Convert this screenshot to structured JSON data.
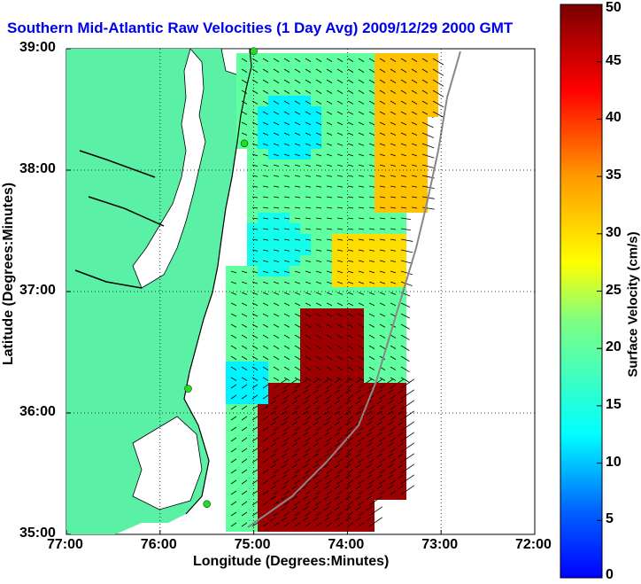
{
  "title": "Southern Mid-Atlantic Raw Velocities (1 Day Avg) 2009/12/29 2000 GMT",
  "colors": {
    "title": "#0000ee",
    "land": "#5af0a5",
    "water": "#ffffff",
    "coastline": "#000000",
    "shelf_line": "#888888",
    "station": "#22dd22",
    "grid": "#000000"
  },
  "map": {
    "xlabel": "Longitude (Degrees:Minutes)",
    "ylabel": "Latitude (Degrees:Minutes)",
    "x_ticks": [
      "77:00",
      "76:00",
      "75:00",
      "74:00",
      "73:00",
      "72:00"
    ],
    "y_ticks": [
      "39:00",
      "38:00",
      "37:00",
      "36:00",
      "35:00"
    ],
    "lon_range": [
      -77,
      -72
    ],
    "lat_range": [
      35,
      39
    ]
  },
  "colorbar": {
    "label": "Surface Velocity (cm/s)",
    "ticks": [
      "50",
      "45",
      "40",
      "35",
      "30",
      "25",
      "20",
      "15",
      "10",
      "5",
      "0"
    ],
    "range": [
      0,
      50
    ],
    "colormap": "jet"
  },
  "stations": [
    {
      "lon": -75.0,
      "lat": 38.98
    },
    {
      "lon": -75.1,
      "lat": 38.22
    },
    {
      "lon": -75.7,
      "lat": 36.2
    },
    {
      "lon": -75.5,
      "lat": 35.25
    }
  ]
}
